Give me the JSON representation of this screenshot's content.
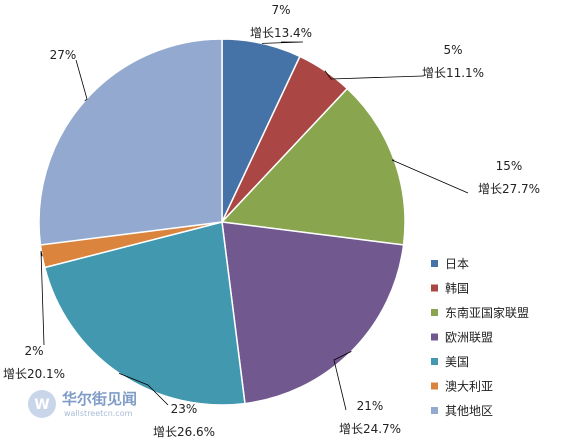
{
  "chart_data": {
    "type": "pie",
    "title": "",
    "legend_position": "right",
    "slices": [
      {
        "name": "日本",
        "value": 7,
        "label": "7%",
        "growth": "增长13.4%",
        "color": "#4572a7"
      },
      {
        "name": "韩国",
        "value": 5,
        "label": "5%",
        "growth": "增长11.1%",
        "color": "#aa4643"
      },
      {
        "name": "东南亚国家联盟",
        "value": 15,
        "label": "15%",
        "growth": "增长27.7%",
        "color": "#89a54e"
      },
      {
        "name": "欧洲联盟",
        "value": 21,
        "label": "21%",
        "growth": "增长24.7%",
        "color": "#71588f"
      },
      {
        "name": "美国",
        "value": 23,
        "label": "23%",
        "growth": "增长26.6%",
        "color": "#4198af"
      },
      {
        "name": "澳大利亚",
        "value": 2,
        "label": "2%",
        "growth": "增长20.1%",
        "color": "#db843d"
      },
      {
        "name": "其他地区",
        "value": 27,
        "label": "27%",
        "growth": "",
        "color": "#93a9cf"
      }
    ]
  },
  "watermark": {
    "text_cn": "华尔街见闻",
    "text_en": "wallstreetcn.com"
  }
}
